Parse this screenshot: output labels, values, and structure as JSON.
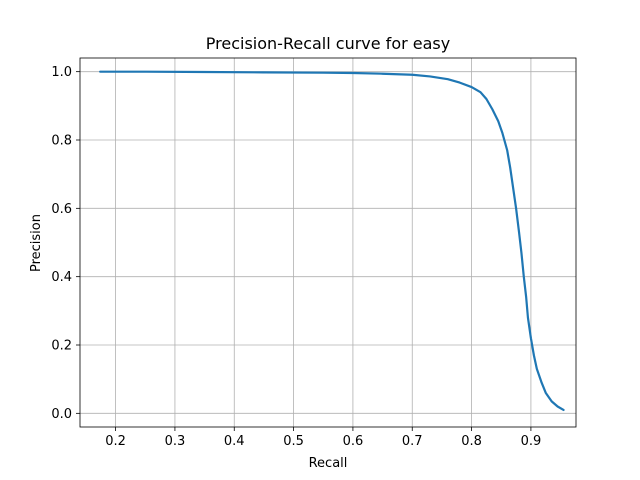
{
  "chart_data": {
    "type": "line",
    "title": "Precision-Recall curve for easy",
    "xlabel": "Recall",
    "ylabel": "Precision",
    "xlim": [
      0.14,
      0.976
    ],
    "ylim": [
      -0.04,
      1.04
    ],
    "xticks": [
      0.2,
      0.3,
      0.4,
      0.5,
      0.6,
      0.7,
      0.8,
      0.9
    ],
    "xtick_labels": [
      "0.2",
      "0.3",
      "0.4",
      "0.5",
      "0.6",
      "0.7",
      "0.8",
      "0.9"
    ],
    "yticks": [
      0.0,
      0.2,
      0.4,
      0.6,
      0.8,
      1.0
    ],
    "ytick_labels": [
      "0.0",
      "0.2",
      "0.4",
      "0.6",
      "0.8",
      "1.0"
    ],
    "grid": true,
    "series": [
      {
        "color": "#1f77b4",
        "x": [
          0.174,
          0.25,
          0.35,
          0.45,
          0.55,
          0.6,
          0.65,
          0.7,
          0.73,
          0.76,
          0.78,
          0.8,
          0.815,
          0.825,
          0.835,
          0.845,
          0.852,
          0.86,
          0.865,
          0.87,
          0.875,
          0.88,
          0.884,
          0.888,
          0.892,
          0.895,
          0.9,
          0.905,
          0.91,
          0.918,
          0.925,
          0.935,
          0.945,
          0.955
        ],
        "y": [
          1.0,
          1.0,
          0.999,
          0.998,
          0.997,
          0.996,
          0.994,
          0.991,
          0.986,
          0.978,
          0.968,
          0.955,
          0.94,
          0.92,
          0.89,
          0.855,
          0.82,
          0.77,
          0.72,
          0.66,
          0.6,
          0.53,
          0.47,
          0.4,
          0.34,
          0.28,
          0.22,
          0.17,
          0.13,
          0.09,
          0.06,
          0.035,
          0.02,
          0.01
        ]
      }
    ]
  }
}
